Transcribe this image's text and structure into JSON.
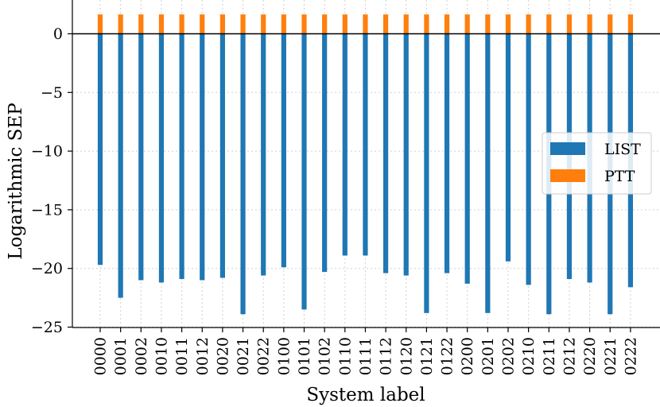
{
  "chart_data": {
    "type": "bar",
    "xlabel": "System label",
    "ylabel": "Logarithmic SEP",
    "ylim": [
      -25,
      1.8
    ],
    "yticks": [
      0,
      -5,
      -10,
      -15,
      -20,
      -25
    ],
    "ytick_labels": [
      "0",
      "−5",
      "−10",
      "−15",
      "−20",
      "−25"
    ],
    "grid": true,
    "legend_position": "center-right",
    "categories": [
      "0000",
      "0001",
      "0002",
      "0010",
      "0011",
      "0012",
      "0020",
      "0021",
      "0022",
      "0100",
      "0101",
      "0102",
      "0110",
      "0111",
      "0112",
      "0120",
      "0121",
      "0122",
      "0200",
      "0201",
      "0202",
      "0210",
      "0211",
      "0212",
      "0220",
      "0221",
      "0222"
    ],
    "series": [
      {
        "name": "LIST",
        "color": "#1f77b4",
        "values": [
          -19.7,
          -22.5,
          -21.0,
          -21.2,
          -20.9,
          -21.0,
          -20.8,
          -23.9,
          -20.6,
          -19.9,
          -23.5,
          -20.3,
          -18.9,
          -18.9,
          -20.4,
          -20.6,
          -23.8,
          -20.4,
          -21.3,
          -23.8,
          -19.4,
          -21.4,
          -23.9,
          -20.9,
          -21.2,
          -23.9,
          -21.6
        ]
      },
      {
        "name": "PTT",
        "color": "#ff7f0e",
        "values": [
          1.65,
          1.65,
          1.65,
          1.65,
          1.65,
          1.65,
          1.65,
          1.65,
          1.65,
          1.65,
          1.65,
          1.65,
          1.65,
          1.65,
          1.65,
          1.65,
          1.65,
          1.65,
          1.65,
          1.65,
          1.65,
          1.65,
          1.65,
          1.65,
          1.65,
          1.65,
          1.65
        ]
      }
    ]
  }
}
